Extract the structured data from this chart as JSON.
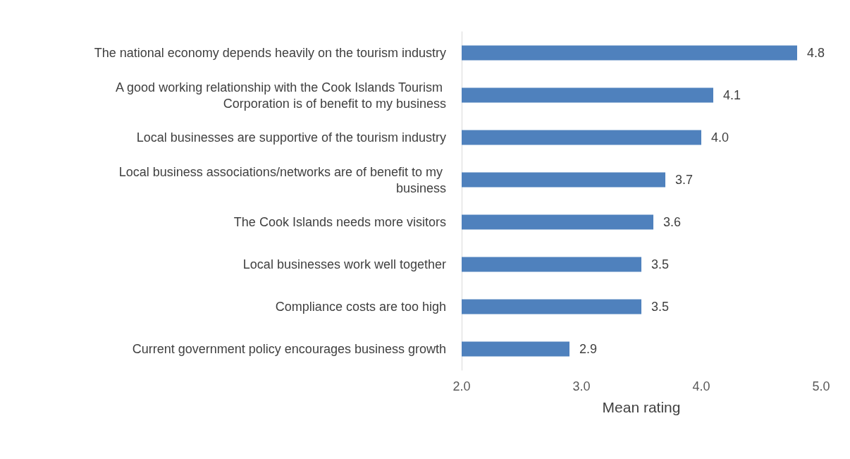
{
  "chart_data": {
    "type": "bar",
    "orientation": "horizontal",
    "xlabel": "Mean rating",
    "categories": [
      "The national economy depends heavily on the tourism industry",
      "A good working relationship with the Cook Islands Tourism Corporation is of benefit to my business",
      "Local businesses are supportive of the tourism industry",
      "Local business associations/networks are of benefit to my business",
      "The Cook Islands needs more visitors",
      "Local businesses work well together",
      "Compliance costs are too high",
      "Current government policy encourages business growth"
    ],
    "values": [
      4.8,
      4.1,
      4.0,
      3.7,
      3.6,
      3.5,
      3.5,
      2.9
    ],
    "value_labels": [
      "4.8",
      "4.1",
      "4.0",
      "3.7",
      "3.6",
      "3.5",
      "3.5",
      "2.9"
    ],
    "color": "#4f81bd",
    "xlim": [
      2,
      5
    ],
    "xticks": [
      {
        "value": 2,
        "label": "2.0"
      },
      {
        "value": 3,
        "label": "3.0"
      },
      {
        "value": 4,
        "label": "4.0"
      },
      {
        "value": 5,
        "label": "5.0"
      }
    ],
    "grid": false
  }
}
